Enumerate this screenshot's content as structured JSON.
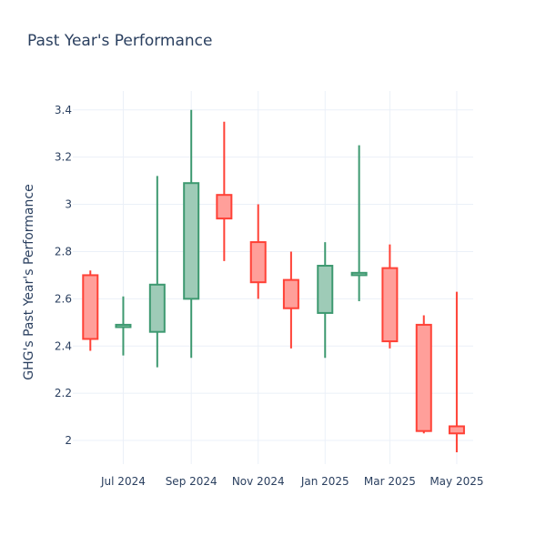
{
  "chart_data": {
    "type": "candlestick",
    "title": "Past Year's Performance",
    "xlabel": "",
    "ylabel": "GHG's Past Year's Performance",
    "ylim": [
      1.9,
      3.48
    ],
    "y_ticks": [
      2,
      2.2,
      2.4,
      2.6,
      2.8,
      3,
      3.2,
      3.4
    ],
    "y_tick_labels": [
      "2",
      "2.2",
      "2.4",
      "2.6",
      "2.8",
      "3",
      "3.2",
      "3.4"
    ],
    "x_ticks": [
      "2024-07-01",
      "2024-09-01",
      "2024-11-01",
      "2025-01-01",
      "2025-03-01",
      "2025-05-01"
    ],
    "x_tick_labels": [
      "Jul 2024",
      "Sep 2024",
      "Nov 2024",
      "Jan 2025",
      "Mar 2025",
      "May 2025"
    ],
    "xlim": [
      "2024-05-16",
      "2025-05-16"
    ],
    "grid": true,
    "increasing_color": "#3d9970",
    "increasing_fill": "#9ecbb7",
    "decreasing_color": "#ff4136",
    "decreasing_fill": "#ff9f9a",
    "candles": [
      {
        "date": "2024-06-01",
        "open": 2.7,
        "high": 2.72,
        "low": 2.38,
        "close": 2.43
      },
      {
        "date": "2024-07-01",
        "open": 2.48,
        "high": 2.61,
        "low": 2.36,
        "close": 2.49
      },
      {
        "date": "2024-08-01",
        "open": 2.46,
        "high": 3.12,
        "low": 2.31,
        "close": 2.66
      },
      {
        "date": "2024-09-01",
        "open": 2.6,
        "high": 3.4,
        "low": 2.35,
        "close": 3.09
      },
      {
        "date": "2024-10-01",
        "open": 3.04,
        "high": 3.35,
        "low": 2.76,
        "close": 2.94
      },
      {
        "date": "2024-11-01",
        "open": 2.84,
        "high": 3.0,
        "low": 2.6,
        "close": 2.67
      },
      {
        "date": "2024-12-01",
        "open": 2.68,
        "high": 2.8,
        "low": 2.39,
        "close": 2.56
      },
      {
        "date": "2025-01-01",
        "open": 2.54,
        "high": 2.84,
        "low": 2.35,
        "close": 2.74
      },
      {
        "date": "2025-02-01",
        "open": 2.7,
        "high": 3.25,
        "low": 2.59,
        "close": 2.71
      },
      {
        "date": "2025-03-01",
        "open": 2.73,
        "high": 2.83,
        "low": 2.39,
        "close": 2.42
      },
      {
        "date": "2025-04-01",
        "open": 2.49,
        "high": 2.53,
        "low": 2.03,
        "close": 2.04
      },
      {
        "date": "2025-05-01",
        "open": 2.06,
        "high": 2.63,
        "low": 1.95,
        "close": 2.03
      }
    ]
  }
}
